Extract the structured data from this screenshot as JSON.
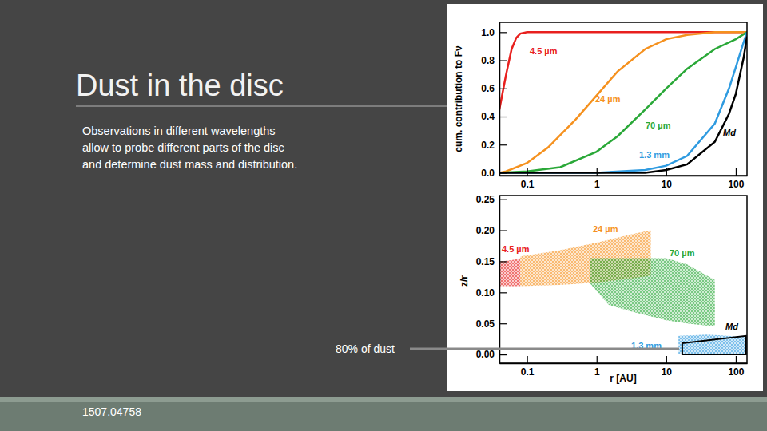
{
  "slide": {
    "title": "Dust in the disc",
    "text_lines": [
      "Observations in different wavelengths",
      "allow to probe different parts of the disc",
      "and determine dust mass and distribution."
    ],
    "annotation": "80% of dust",
    "footer": "1507.04758"
  },
  "chart_data": [
    {
      "type": "line",
      "ylabel": "cum. contribution to Fν",
      "log": "x",
      "xlim": [
        0.04,
        145
      ],
      "xticks": [
        0.1,
        1,
        10,
        100
      ],
      "ylim": [
        -0.02,
        1.07
      ],
      "yticks": [
        {
          "value": 0,
          "label": "0.0"
        },
        0.2,
        0.4,
        0.6,
        0.8,
        {
          "value": 1,
          "label": "1.0"
        }
      ],
      "series": [
        {
          "name": "4.5 µm",
          "color": "#e8201e",
          "x": [
            0.04,
            0.05,
            0.06,
            0.07,
            0.08,
            0.1,
            145
          ],
          "values": [
            0.45,
            0.7,
            0.88,
            0.96,
            0.99,
            1,
            1
          ]
        },
        {
          "name": "24 µm",
          "color": "#f5911e",
          "x": [
            0.04,
            0.05,
            0.1,
            0.2,
            0.5,
            1,
            2,
            5,
            10,
            20,
            50,
            145
          ],
          "values": [
            0,
            0.01,
            0.07,
            0.18,
            0.38,
            0.55,
            0.72,
            0.88,
            0.95,
            0.98,
            1,
            1
          ]
        },
        {
          "name": "70 µm",
          "color": "#2aa838",
          "x": [
            0.04,
            0.1,
            0.3,
            1,
            2,
            5,
            10,
            20,
            50,
            100,
            145
          ],
          "values": [
            0,
            0.01,
            0.04,
            0.15,
            0.26,
            0.45,
            0.6,
            0.74,
            0.88,
            0.95,
            1
          ]
        },
        {
          "name": "1.3 mm",
          "color": "#2f9be0",
          "x": [
            0.04,
            1,
            5,
            10,
            20,
            50,
            80,
            100,
            130,
            145
          ],
          "values": [
            0,
            0,
            0.02,
            0.05,
            0.12,
            0.35,
            0.6,
            0.75,
            0.93,
            1
          ]
        },
        {
          "name": "Md",
          "color": "#000000",
          "x": [
            0.04,
            5,
            10,
            20,
            50,
            80,
            100,
            130,
            145
          ],
          "values": [
            0,
            0,
            0.02,
            0.06,
            0.22,
            0.42,
            0.56,
            0.82,
            0.97
          ]
        }
      ]
    },
    {
      "type": "area",
      "xlabel": "r [AU]",
      "ylabel": "z/r",
      "log": "x",
      "xlim": [
        0.04,
        145
      ],
      "xticks": [
        0.1,
        1,
        10,
        100
      ],
      "ylim": [
        -0.014,
        0.256
      ],
      "yticks": [
        {
          "value": 0,
          "label": "0.00"
        },
        {
          "value": 0.05,
          "label": "0.05"
        },
        {
          "value": 0.1,
          "label": "0.10"
        },
        {
          "value": 0.15,
          "label": "0.15"
        },
        {
          "value": 0.2,
          "label": "0.20"
        },
        {
          "value": 0.25,
          "label": "0.25"
        }
      ],
      "series": [
        {
          "name": "4.5 µm",
          "color": "#e8201e",
          "x": [
            0.04,
            0.06,
            0.08
          ],
          "upper": [
            0.15,
            0.152,
            0.155
          ],
          "lower": [
            0.11,
            0.11,
            0.11
          ]
        },
        {
          "name": "24 µm",
          "color": "#f5911e",
          "x": [
            0.08,
            0.3,
            1,
            3,
            6
          ],
          "upper": [
            0.158,
            0.168,
            0.18,
            0.193,
            0.2
          ],
          "lower": [
            0.11,
            0.112,
            0.116,
            0.122,
            0.127
          ]
        },
        {
          "name": "70 µm",
          "color": "#2aa838",
          "x": [
            0.8,
            1.5,
            3,
            10,
            20,
            50
          ],
          "upper": [
            0.155,
            0.155,
            0.155,
            0.155,
            0.145,
            0.12
          ],
          "lower": [
            0.115,
            0.08,
            0.07,
            0.055,
            0.05,
            0.045
          ]
        },
        {
          "name": "1.3 mm",
          "color": "#2f9be0",
          "x": [
            15,
            40,
            145
          ],
          "upper": [
            0.03,
            0.032,
            0.028
          ],
          "lower": [
            0,
            0,
            0
          ]
        },
        {
          "name": "Md",
          "color": "#000000",
          "type": "outline",
          "x": [
            17,
            140
          ],
          "upper": [
            0.018,
            0.03
          ],
          "lower": [
            0,
            0
          ]
        }
      ]
    }
  ]
}
